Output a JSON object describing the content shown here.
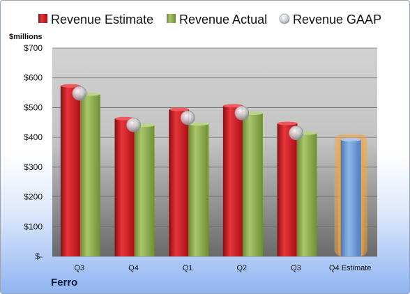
{
  "company": "Ferro",
  "unit_label": "$millions",
  "colors": {
    "estimate": "#c8141b",
    "actual": "#8fae4e",
    "gaap": "#bfc3c9",
    "forecast": "#6b9ad6",
    "forecast_glow": "#f4a640"
  },
  "chart_data": {
    "type": "bar",
    "categories": [
      "Q3",
      "Q4",
      "Q1",
      "Q2",
      "Q3",
      "Q4 Estimate"
    ],
    "ylim": [
      0,
      700
    ],
    "yticks": [
      0,
      100,
      200,
      300,
      400,
      500,
      600,
      700
    ],
    "ytick_labels": [
      "$-",
      "$100",
      "$200",
      "$300",
      "$400",
      "$500",
      "$600",
      "$700"
    ],
    "ylabel": "$millions",
    "grid": true,
    "legend": "top",
    "series": [
      {
        "name": "Revenue Estimate",
        "type": "bar",
        "values": [
          573,
          463,
          494,
          506,
          447,
          392
        ]
      },
      {
        "name": "Revenue Actual",
        "type": "bar",
        "values": [
          545,
          441,
          445,
          481,
          414,
          null
        ]
      },
      {
        "name": "Revenue GAAP",
        "type": "scatter",
        "values": [
          548,
          442,
          466,
          482,
          415,
          null
        ]
      }
    ]
  }
}
